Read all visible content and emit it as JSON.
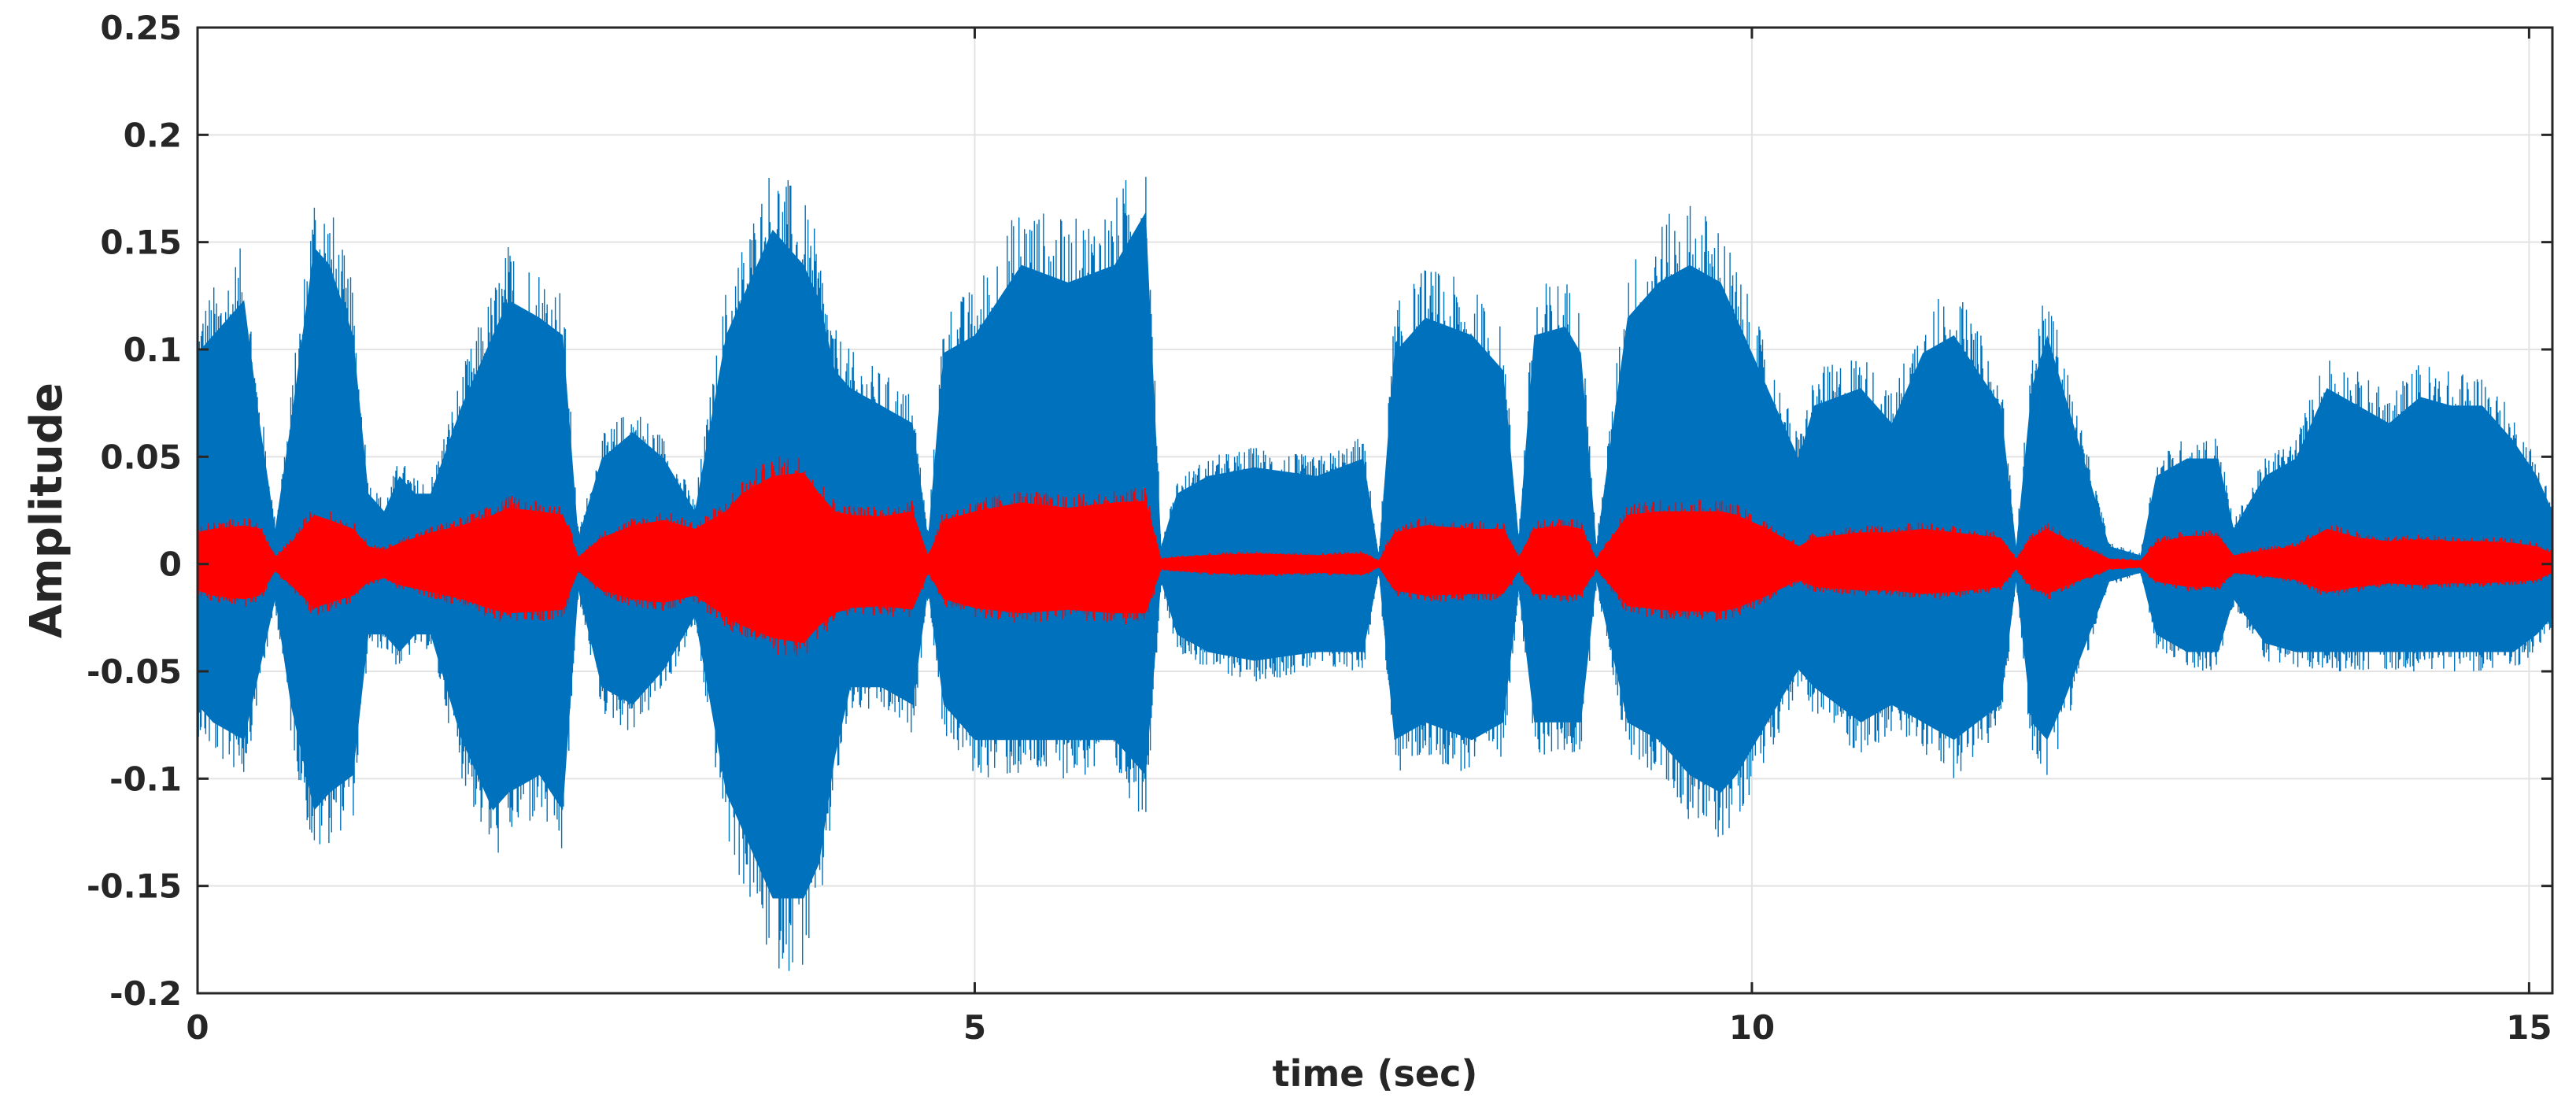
{
  "chart_data": {
    "type": "line",
    "title": "",
    "xlabel": "time (sec)",
    "ylabel": "Amplitude",
    "xlim": [
      0,
      15.15
    ],
    "ylim": [
      -0.2,
      0.25
    ],
    "grid": true,
    "legend": "none",
    "x_ticks": [
      {
        "value": 0,
        "label": "0"
      },
      {
        "value": 5,
        "label": "5"
      },
      {
        "value": 10,
        "label": "10"
      },
      {
        "value": 15,
        "label": "15"
      }
    ],
    "y_ticks": [
      {
        "value": 0.25,
        "label": "0.25"
      },
      {
        "value": 0.2,
        "label": "0.2"
      },
      {
        "value": 0.15,
        "label": "0.15"
      },
      {
        "value": 0.1,
        "label": "0.1"
      },
      {
        "value": 0.05,
        "label": "0.05"
      },
      {
        "value": 0,
        "label": "0"
      },
      {
        "value": -0.05,
        "label": "-0.05"
      },
      {
        "value": -0.1,
        "label": "-0.1"
      },
      {
        "value": -0.15,
        "label": "-0.15"
      },
      {
        "value": -0.2,
        "label": "-0.2"
      }
    ],
    "series": [
      {
        "color": "#0072BD",
        "x": [
          0.0,
          0.1,
          0.3,
          0.4,
          0.5,
          0.6,
          0.75,
          0.85,
          1.0,
          1.1,
          1.2,
          1.3,
          1.4,
          1.5,
          1.7,
          1.9,
          2.0,
          2.2,
          2.35,
          2.45,
          2.6,
          2.8,
          3.0,
          3.2,
          3.4,
          3.5,
          3.7,
          3.9,
          4.0,
          4.1,
          4.2,
          4.4,
          4.6,
          4.7,
          4.8,
          5.0,
          5.3,
          5.6,
          5.9,
          6.1,
          6.2,
          6.3,
          6.5,
          6.8,
          7.2,
          7.5,
          7.6,
          7.7,
          7.9,
          8.2,
          8.4,
          8.5,
          8.6,
          8.8,
          8.9,
          9.0,
          9.2,
          9.4,
          9.6,
          9.8,
          9.9,
          10.1,
          10.3,
          10.4,
          10.7,
          10.9,
          11.1,
          11.3,
          11.6,
          11.7,
          11.8,
          11.9,
          12.0,
          12.3,
          12.5,
          12.6,
          12.8,
          13.0,
          13.1,
          13.3,
          13.5,
          13.7,
          13.9,
          14.1,
          14.3,
          14.5,
          14.7,
          14.9,
          15.05,
          15.15
        ],
        "upper": [
          0.12,
          0.13,
          0.15,
          0.08,
          0.02,
          0.08,
          0.18,
          0.17,
          0.13,
          0.04,
          0.03,
          0.05,
          0.04,
          0.04,
          0.09,
          0.13,
          0.15,
          0.14,
          0.13,
          0.015,
          0.06,
          0.075,
          0.06,
          0.03,
          0.13,
          0.15,
          0.19,
          0.17,
          0.15,
          0.11,
          0.1,
          0.09,
          0.08,
          0.015,
          0.12,
          0.13,
          0.17,
          0.16,
          0.17,
          0.2,
          0.01,
          0.04,
          0.05,
          0.055,
          0.05,
          0.06,
          0.005,
          0.12,
          0.14,
          0.13,
          0.11,
          0.015,
          0.13,
          0.135,
          0.12,
          0.01,
          0.14,
          0.16,
          0.17,
          0.16,
          0.14,
          0.1,
          0.06,
          0.09,
          0.1,
          0.08,
          0.12,
          0.13,
          0.09,
          0.01,
          0.1,
          0.13,
          0.1,
          0.01,
          0.005,
          0.05,
          0.06,
          0.06,
          0.02,
          0.05,
          0.06,
          0.1,
          0.09,
          0.08,
          0.095,
          0.09,
          0.09,
          0.07,
          0.05,
          0.03
        ],
        "lower": [
          -0.08,
          -0.09,
          -0.1,
          -0.06,
          -0.02,
          -0.08,
          -0.14,
          -0.13,
          -0.12,
          -0.04,
          -0.04,
          -0.05,
          -0.04,
          -0.04,
          -0.1,
          -0.14,
          -0.13,
          -0.12,
          -0.14,
          -0.015,
          -0.07,
          -0.08,
          -0.06,
          -0.03,
          -0.13,
          -0.15,
          -0.19,
          -0.19,
          -0.17,
          -0.11,
          -0.07,
          -0.07,
          -0.08,
          -0.015,
          -0.08,
          -0.1,
          -0.1,
          -0.1,
          -0.1,
          -0.12,
          -0.01,
          -0.04,
          -0.05,
          -0.055,
          -0.05,
          -0.05,
          -0.005,
          -0.1,
          -0.09,
          -0.1,
          -0.09,
          -0.015,
          -0.09,
          -0.09,
          -0.09,
          -0.01,
          -0.09,
          -0.1,
          -0.12,
          -0.13,
          -0.12,
          -0.09,
          -0.06,
          -0.07,
          -0.09,
          -0.08,
          -0.09,
          -0.1,
          -0.08,
          -0.01,
          -0.09,
          -0.1,
          -0.08,
          -0.01,
          -0.005,
          -0.04,
          -0.05,
          -0.05,
          -0.02,
          -0.045,
          -0.05,
          -0.05,
          -0.05,
          -0.05,
          -0.05,
          -0.05,
          -0.05,
          -0.05,
          -0.04,
          -0.03
        ]
      },
      {
        "color": "#FF0000",
        "x": [
          0.0,
          0.1,
          0.3,
          0.4,
          0.5,
          0.6,
          0.75,
          0.85,
          1.0,
          1.1,
          1.2,
          1.3,
          1.4,
          1.5,
          1.7,
          1.9,
          2.0,
          2.2,
          2.35,
          2.45,
          2.6,
          2.8,
          3.0,
          3.2,
          3.4,
          3.5,
          3.7,
          3.9,
          4.0,
          4.1,
          4.2,
          4.4,
          4.6,
          4.7,
          4.8,
          5.0,
          5.3,
          5.6,
          5.9,
          6.1,
          6.2,
          6.3,
          6.5,
          6.8,
          7.2,
          7.5,
          7.6,
          7.7,
          7.9,
          8.2,
          8.4,
          8.5,
          8.6,
          8.8,
          8.9,
          9.0,
          9.2,
          9.4,
          9.6,
          9.8,
          9.9,
          10.1,
          10.3,
          10.4,
          10.7,
          10.9,
          11.1,
          11.3,
          11.6,
          11.7,
          11.8,
          11.9,
          12.0,
          12.3,
          12.5,
          12.6,
          12.8,
          13.0,
          13.1,
          13.3,
          13.5,
          13.7,
          13.9,
          14.1,
          14.3,
          14.5,
          14.7,
          14.9,
          15.05,
          15.15
        ],
        "upper": [
          0.018,
          0.02,
          0.022,
          0.02,
          0.004,
          0.012,
          0.028,
          0.025,
          0.02,
          0.01,
          0.008,
          0.012,
          0.015,
          0.018,
          0.022,
          0.028,
          0.032,
          0.03,
          0.028,
          0.004,
          0.015,
          0.022,
          0.025,
          0.02,
          0.03,
          0.04,
          0.05,
          0.052,
          0.04,
          0.03,
          0.028,
          0.027,
          0.03,
          0.005,
          0.025,
          0.03,
          0.035,
          0.032,
          0.035,
          0.036,
          0.003,
          0.004,
          0.005,
          0.006,
          0.005,
          0.006,
          0.002,
          0.018,
          0.022,
          0.02,
          0.02,
          0.004,
          0.02,
          0.022,
          0.02,
          0.003,
          0.028,
          0.03,
          0.03,
          0.03,
          0.028,
          0.02,
          0.01,
          0.015,
          0.018,
          0.018,
          0.02,
          0.018,
          0.015,
          0.003,
          0.015,
          0.02,
          0.015,
          0.003,
          0.002,
          0.012,
          0.016,
          0.016,
          0.005,
          0.008,
          0.01,
          0.02,
          0.015,
          0.013,
          0.014,
          0.013,
          0.013,
          0.012,
          0.01,
          0.006
        ],
        "lower": [
          -0.015,
          -0.018,
          -0.02,
          -0.018,
          -0.004,
          -0.012,
          -0.025,
          -0.022,
          -0.018,
          -0.01,
          -0.008,
          -0.012,
          -0.014,
          -0.016,
          -0.02,
          -0.026,
          -0.028,
          -0.027,
          -0.026,
          -0.004,
          -0.015,
          -0.02,
          -0.022,
          -0.018,
          -0.03,
          -0.035,
          -0.042,
          -0.045,
          -0.035,
          -0.028,
          -0.025,
          -0.024,
          -0.026,
          -0.005,
          -0.02,
          -0.025,
          -0.028,
          -0.026,
          -0.028,
          -0.028,
          -0.003,
          -0.004,
          -0.005,
          -0.006,
          -0.005,
          -0.006,
          -0.002,
          -0.015,
          -0.018,
          -0.017,
          -0.017,
          -0.004,
          -0.017,
          -0.018,
          -0.017,
          -0.003,
          -0.024,
          -0.026,
          -0.027,
          -0.027,
          -0.025,
          -0.018,
          -0.009,
          -0.013,
          -0.015,
          -0.015,
          -0.017,
          -0.016,
          -0.013,
          -0.003,
          -0.013,
          -0.017,
          -0.013,
          -0.003,
          -0.002,
          -0.01,
          -0.013,
          -0.013,
          -0.005,
          -0.007,
          -0.009,
          -0.016,
          -0.013,
          -0.011,
          -0.012,
          -0.011,
          -0.011,
          -0.01,
          -0.009,
          -0.005
        ]
      }
    ]
  }
}
